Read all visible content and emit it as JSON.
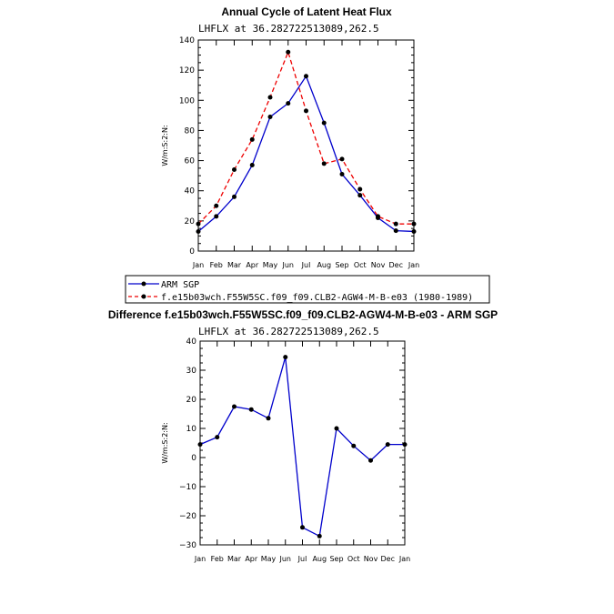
{
  "chart_data": [
    {
      "type": "line",
      "title": "Annual Cycle of Latent Heat Flux",
      "subtitle": "LHFLX at 36.282722513089,262.5",
      "ylabel": "W/m:S:2:N:",
      "ylim": [
        0,
        140
      ],
      "yticks": [
        0,
        20,
        40,
        60,
        80,
        100,
        120,
        140
      ],
      "categories": [
        "Jan",
        "Feb",
        "Mar",
        "Apr",
        "May",
        "Jun",
        "Jul",
        "Aug",
        "Sep",
        "Oct",
        "Nov",
        "Dec",
        "Jan"
      ],
      "series": [
        {
          "name": "ARM SGP",
          "color": "#0000cc",
          "dash": "solid",
          "values": [
            13,
            23,
            36,
            57,
            89,
            98,
            116,
            85,
            51,
            37,
            22,
            13.5,
            13
          ]
        },
        {
          "name": "f.e15b03wch.F55W5SC.f09_f09.CLB2-AGW4-M-B-e03 (1980-1989)",
          "color": "#ee0000",
          "dash": "dashed",
          "values": [
            18,
            30,
            54,
            74,
            102,
            132,
            93,
            58,
            61,
            41,
            23,
            18,
            18
          ]
        }
      ],
      "legend": "below"
    },
    {
      "type": "line",
      "title": "Difference f.e15b03wch.F55W5SC.f09_f09.CLB2-AGW4-M-B-e03 - ARM SGP",
      "subtitle": "LHFLX at 36.282722513089,262.5",
      "ylabel": "W/m:S:2:N:",
      "ylim": [
        -30,
        40
      ],
      "yticks": [
        -30,
        -20,
        -10,
        0,
        10,
        20,
        30,
        40
      ],
      "ytick_labels": [
        "−30",
        "−20",
        "−10",
        "0",
        "10",
        "20",
        "30",
        "40"
      ],
      "categories": [
        "Jan",
        "Feb",
        "Mar",
        "Apr",
        "May",
        "Jun",
        "Jul",
        "Aug",
        "Sep",
        "Oct",
        "Nov",
        "Dec",
        "Jan"
      ],
      "series": [
        {
          "name": "Difference",
          "color": "#0000cc",
          "dash": "solid",
          "values": [
            4.5,
            7,
            17.5,
            16.5,
            13.5,
            34.5,
            -24,
            -27,
            10,
            4,
            -1,
            4.5,
            4.5
          ]
        }
      ]
    }
  ]
}
